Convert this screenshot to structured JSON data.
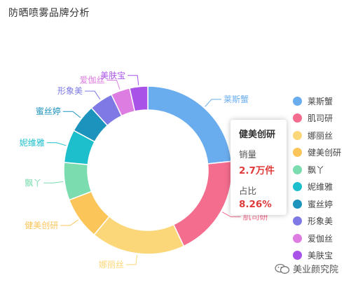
{
  "page_title": "防晒喷雾品牌分析",
  "colors": {
    "inner_bg": "#ffffff",
    "tooltip_value": "#e03b3b"
  },
  "chart_data": {
    "type": "pie",
    "donut": true,
    "series": [
      {
        "name": "",
        "categories": [
          "莱斯蟹",
          "肌司研",
          "娜丽丝",
          "健美创研",
          "飘丫",
          "妮维雅",
          "蜜丝婷",
          "形象美",
          "爱伽丝",
          "美肤宝"
        ],
        "values": [
          23.5,
          19.8,
          18.2,
          8.26,
          7.3,
          6.4,
          5.5,
          4.6,
          3.7,
          3.5
        ],
        "colors": [
          "#6AADEE",
          "#F46C8E",
          "#FBD779",
          "#FBC55A",
          "#7BDCAF",
          "#1DBFCD",
          "#1C93BD",
          "#7E79E5",
          "#DD7DE1",
          "#A852E8"
        ]
      }
    ],
    "legend": {
      "position": "right",
      "entries": [
        "莱斯蟹",
        "肌司研",
        "娜丽丝",
        "健美创研",
        "飘丫",
        "妮维雅",
        "蜜丝婷",
        "形象美",
        "爱伽丝",
        "美肤宝"
      ]
    },
    "tooltip": {
      "title": "健美创研",
      "sales_label": "销量",
      "sales_value": "2.7万件",
      "share_label": "占比",
      "share_value": "8.26%"
    }
  },
  "watermark": {
    "text": "美业颜究院",
    "icon": "wechat-icon"
  }
}
